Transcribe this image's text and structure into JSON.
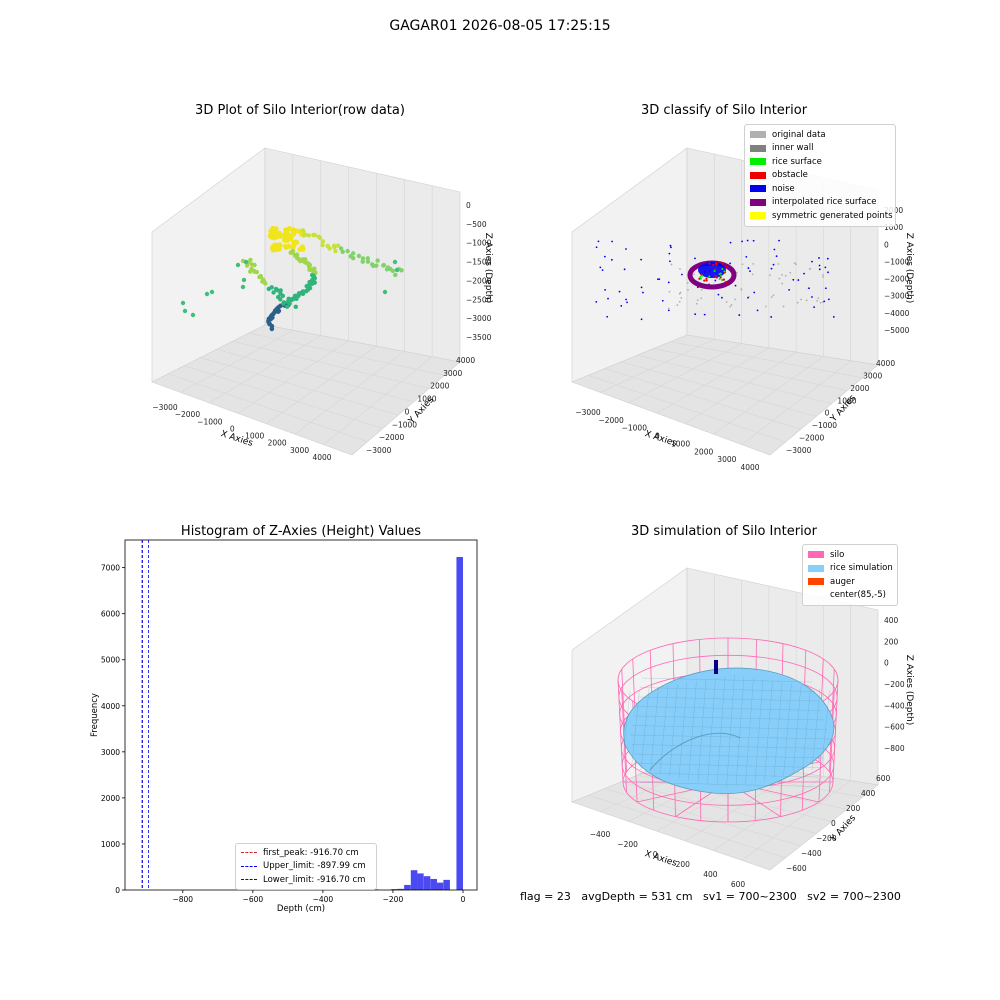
{
  "suptitle": "GAGAR01 2026-08-05 17:25:15",
  "colors": {
    "pane": "#f2f2f2",
    "grid": "#d4d4d4",
    "hist_bar": "#4a4af0",
    "viridis_hi": "#f0e51c",
    "viridis_mid": "#2fb47c",
    "viridis_lo": "#2c5f8a",
    "silo": "#ff69b4",
    "rice": "#87cefa",
    "auger": "#ff4500"
  },
  "footer": "flag = 23   avgDepth = 531 cm   sv1 = 700~2300   sv2 = 700~2300",
  "chart_data": [
    {
      "type": "scatter",
      "title": "3D Plot of Silo Interior(row data)",
      "xlabel": "X Axies",
      "ylabel": "Y Axies",
      "zlabel": "Z Axies (Depth)",
      "xticks": [
        "−3000",
        "−2000",
        "−1000",
        "0",
        "1000",
        "2000",
        "3000",
        "4000"
      ],
      "yticks": [
        "−3000",
        "−2000",
        "−1000",
        "0",
        "1000",
        "2000",
        "3000",
        "4000"
      ],
      "zticks": [
        "0",
        "−500",
        "−1000",
        "−1500",
        "−2000",
        "−2500",
        "−3000",
        "−3500"
      ],
      "zlim": [
        -3500,
        0
      ]
    },
    {
      "type": "scatter",
      "title": "3D classify of Silo Interior",
      "xlabel": "X Axies",
      "ylabel": "Y Axies",
      "zlabel": "Z Axies (Depth)",
      "xticks": [
        "−3000",
        "−2000",
        "−1000",
        "0",
        "1000",
        "2000",
        "3000",
        "4000"
      ],
      "yticks": [
        "−3000",
        "−2000",
        "−1000",
        "0",
        "1000",
        "2000",
        "3000",
        "4000"
      ],
      "zticks": [
        "2000",
        "1000",
        "0",
        "−1000",
        "−2000",
        "−3000",
        "−4000",
        "−5000"
      ],
      "legend": [
        {
          "label": "original data",
          "color": "#b0b0b0"
        },
        {
          "label": "inner wall",
          "color": "#808080"
        },
        {
          "label": "rice surface",
          "color": "#00ee00"
        },
        {
          "label": "obstacle",
          "color": "#ee0000"
        },
        {
          "label": "noise",
          "color": "#0000ee"
        },
        {
          "label": "interpolated rice surface",
          "color": "#800080"
        },
        {
          "label": "symmetric generated points",
          "color": "#ffff00"
        }
      ]
    },
    {
      "type": "bar",
      "title": "Histogram of Z-Axies (Height) Values",
      "xlabel": "Depth (cm)",
      "ylabel": "Frequency",
      "xlim": [
        -965,
        40
      ],
      "ylim": [
        0,
        7600
      ],
      "xticks": [
        -800,
        -600,
        -400,
        -200,
        0
      ],
      "yticks": [
        0,
        1000,
        2000,
        3000,
        4000,
        5000,
        6000,
        7000
      ],
      "bin_width": 18.7,
      "bins": [
        {
          "x0": -450,
          "count": 10
        },
        {
          "x0": -300,
          "count": 8
        },
        {
          "x0": -262,
          "count": 15
        },
        {
          "x0": -205,
          "count": 20
        },
        {
          "x0": -187,
          "count": 25
        },
        {
          "x0": -168,
          "count": 110
        },
        {
          "x0": -149,
          "count": 430
        },
        {
          "x0": -131,
          "count": 360
        },
        {
          "x0": -112,
          "count": 300
        },
        {
          "x0": -93,
          "count": 240
        },
        {
          "x0": -75,
          "count": 160
        },
        {
          "x0": -56,
          "count": 220
        },
        {
          "x0": -18.7,
          "count": 7230
        }
      ],
      "vlines": [
        {
          "label": "first_peak: -916.70 cm",
          "x": -916.7,
          "color": "#d62728"
        },
        {
          "label": "Upper_limit: -897.99 cm",
          "x": -897.99,
          "color": "#0000ff"
        },
        {
          "label": "Lower_limit: -916.70 cm",
          "x": -916.7,
          "color": "#0000ff"
        }
      ]
    },
    {
      "type": "area",
      "title": "3D simulation of Silo Interior",
      "xlabel": "X Axies",
      "ylabel": "Y Axies",
      "zlabel": "Z Axies (Depth)",
      "xticks": [
        "−400",
        "−200",
        "0",
        "200",
        "400",
        "600"
      ],
      "yticks": [
        "−600",
        "−400",
        "−200",
        "0",
        "200",
        "400",
        "600"
      ],
      "zticks": [
        "400",
        "200",
        "0",
        "−200",
        "−400",
        "−600",
        "−800"
      ],
      "legend": [
        {
          "label": "silo",
          "color": "#ff69b4"
        },
        {
          "label": "rice simulation",
          "color": "#87cefa"
        },
        {
          "label": "auger",
          "color": "#ff4500"
        },
        {
          "label": "center(85,-5)",
          "color": ""
        }
      ]
    }
  ]
}
